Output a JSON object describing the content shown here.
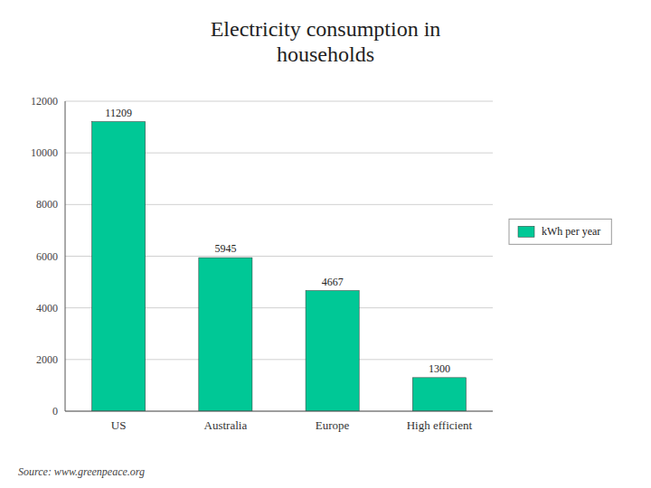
{
  "chart_data": {
    "type": "bar",
    "title": "Electricity consumption in\nhouseholds",
    "categories": [
      "US",
      "Australia",
      "Europe",
      "High efficient"
    ],
    "series": [
      {
        "name": "kWh per year",
        "color": "#00C896",
        "values": [
          11209,
          5945,
          4667,
          1300
        ]
      }
    ],
    "ylim": [
      0,
      12000
    ],
    "yticks": [
      0,
      2000,
      4000,
      6000,
      8000,
      10000,
      12000
    ],
    "grid": true,
    "legend": "right",
    "data_labels": true,
    "source": "Source: www.greenpeace.org"
  }
}
